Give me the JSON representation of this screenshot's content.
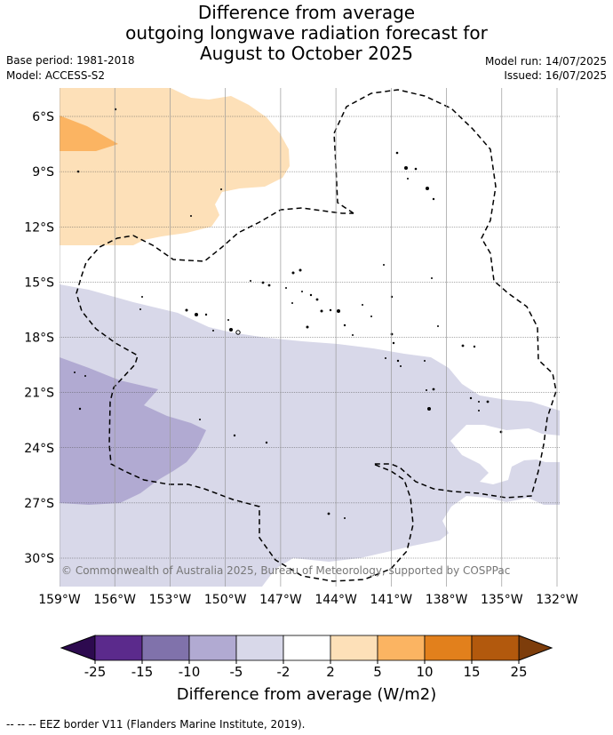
{
  "title": {
    "line1": "Difference from average",
    "line2": "outgoing longwave radiation forecast for",
    "line3": "August to October 2025"
  },
  "meta": {
    "base_period": "Base period: 1981-2018",
    "model": "Model: ACCESS-S2",
    "model_run": "Model run: 14/07/2025",
    "issued": "Issued: 16/07/2025"
  },
  "map": {
    "lat_labels": [
      "6°S",
      "9°S",
      "12°S",
      "15°S",
      "18°S",
      "21°S",
      "24°S",
      "27°S",
      "30°S"
    ],
    "lat_values": [
      -6,
      -9,
      -12,
      -15,
      -18,
      -21,
      -24,
      -27,
      -30
    ],
    "lon_labels": [
      "159°W",
      "156°W",
      "153°W",
      "150°W",
      "147°W",
      "144°W",
      "141°W",
      "138°W",
      "135°W",
      "132°W"
    ],
    "lon_values": [
      -159,
      -156,
      -153,
      -150,
      -147,
      -144,
      -141,
      -138,
      -135,
      -132
    ],
    "copyright": "© Commonwealth of Australia 2025, Bureau of Meteorology, supported by COSPPac",
    "layers": [
      {
        "name": "2 to 5",
        "color": "#fde0b8"
      },
      {
        "name": "5 to 10",
        "color": "#fbb462"
      },
      {
        "name": "-5 to -2",
        "color": "#d8d8e9"
      },
      {
        "name": "-10 to -5",
        "color": "#b1aad2"
      }
    ]
  },
  "colorbar": {
    "ticks": [
      "-25",
      "-15",
      "-10",
      "-5",
      "-2",
      "2",
      "5",
      "10",
      "15",
      "25"
    ],
    "colors": [
      "#5b2a8c",
      "#8072ab",
      "#b1aad2",
      "#d8d8e9",
      "#ffffff",
      "#fde0b8",
      "#fbb462",
      "#e2801c",
      "#b2590d"
    ],
    "under_color": "#2d0a4f",
    "over_color": "#7d3d0b",
    "label": "Difference from average (W/m2)"
  },
  "footer": "--  --  -- EEZ border V11 (Flanders Marine Institute, 2019)."
}
